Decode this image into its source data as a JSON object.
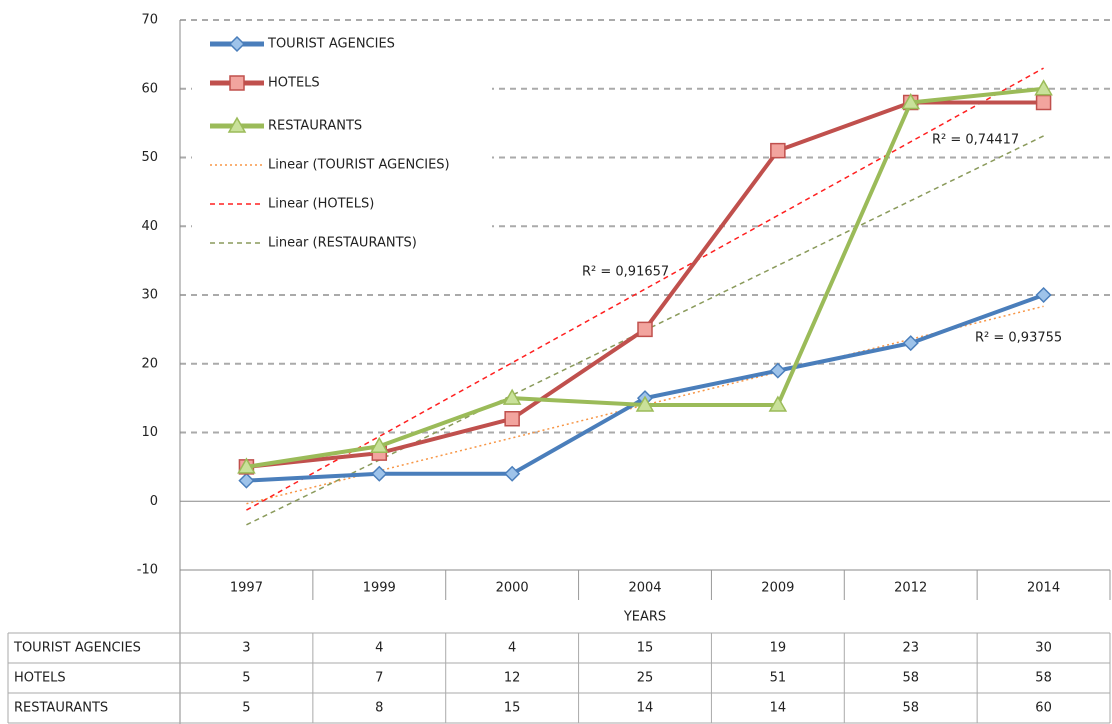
{
  "chart_data": {
    "type": "line",
    "categories": [
      "1997",
      "1999",
      "2000",
      "2004",
      "2009",
      "2012",
      "2014"
    ],
    "x_label": "YEARS",
    "series": [
      {
        "name": "TOURIST AGENCIES",
        "color": "#4a7ebb",
        "marker_fill": "#9ec3ea",
        "marker": "diamond",
        "values": [
          3,
          4,
          4,
          15,
          19,
          23,
          30
        ]
      },
      {
        "name": "HOTELS",
        "color": "#c0504d",
        "marker_fill": "#f2a49e",
        "marker": "square",
        "values": [
          5,
          7,
          12,
          25,
          51,
          58,
          58
        ]
      },
      {
        "name": "RESTAURANTS",
        "color": "#9bbb59",
        "marker_fill": "#c9e19a",
        "marker": "triangle",
        "values": [
          5,
          8,
          15,
          14,
          14,
          58,
          60
        ]
      }
    ],
    "trendlines": [
      {
        "name": "Linear (TOURIST AGENCIES)",
        "color": "#f79646",
        "dash": "2,3",
        "r2_label": "R² = 0,93755"
      },
      {
        "name": "Linear (HOTELS)",
        "color": "#ff2020",
        "dash": "5,4",
        "r2_label": "R² = 0,91657"
      },
      {
        "name": "Linear (RESTAURANTS)",
        "color": "#8a9a5b",
        "dash": "5,4",
        "r2_label": "R² = 0,74417"
      }
    ],
    "ylim": [
      -10,
      70
    ],
    "yticks": [
      -10,
      0,
      10,
      20,
      30,
      40,
      50,
      60,
      70
    ],
    "grid": true,
    "data_table": true
  }
}
